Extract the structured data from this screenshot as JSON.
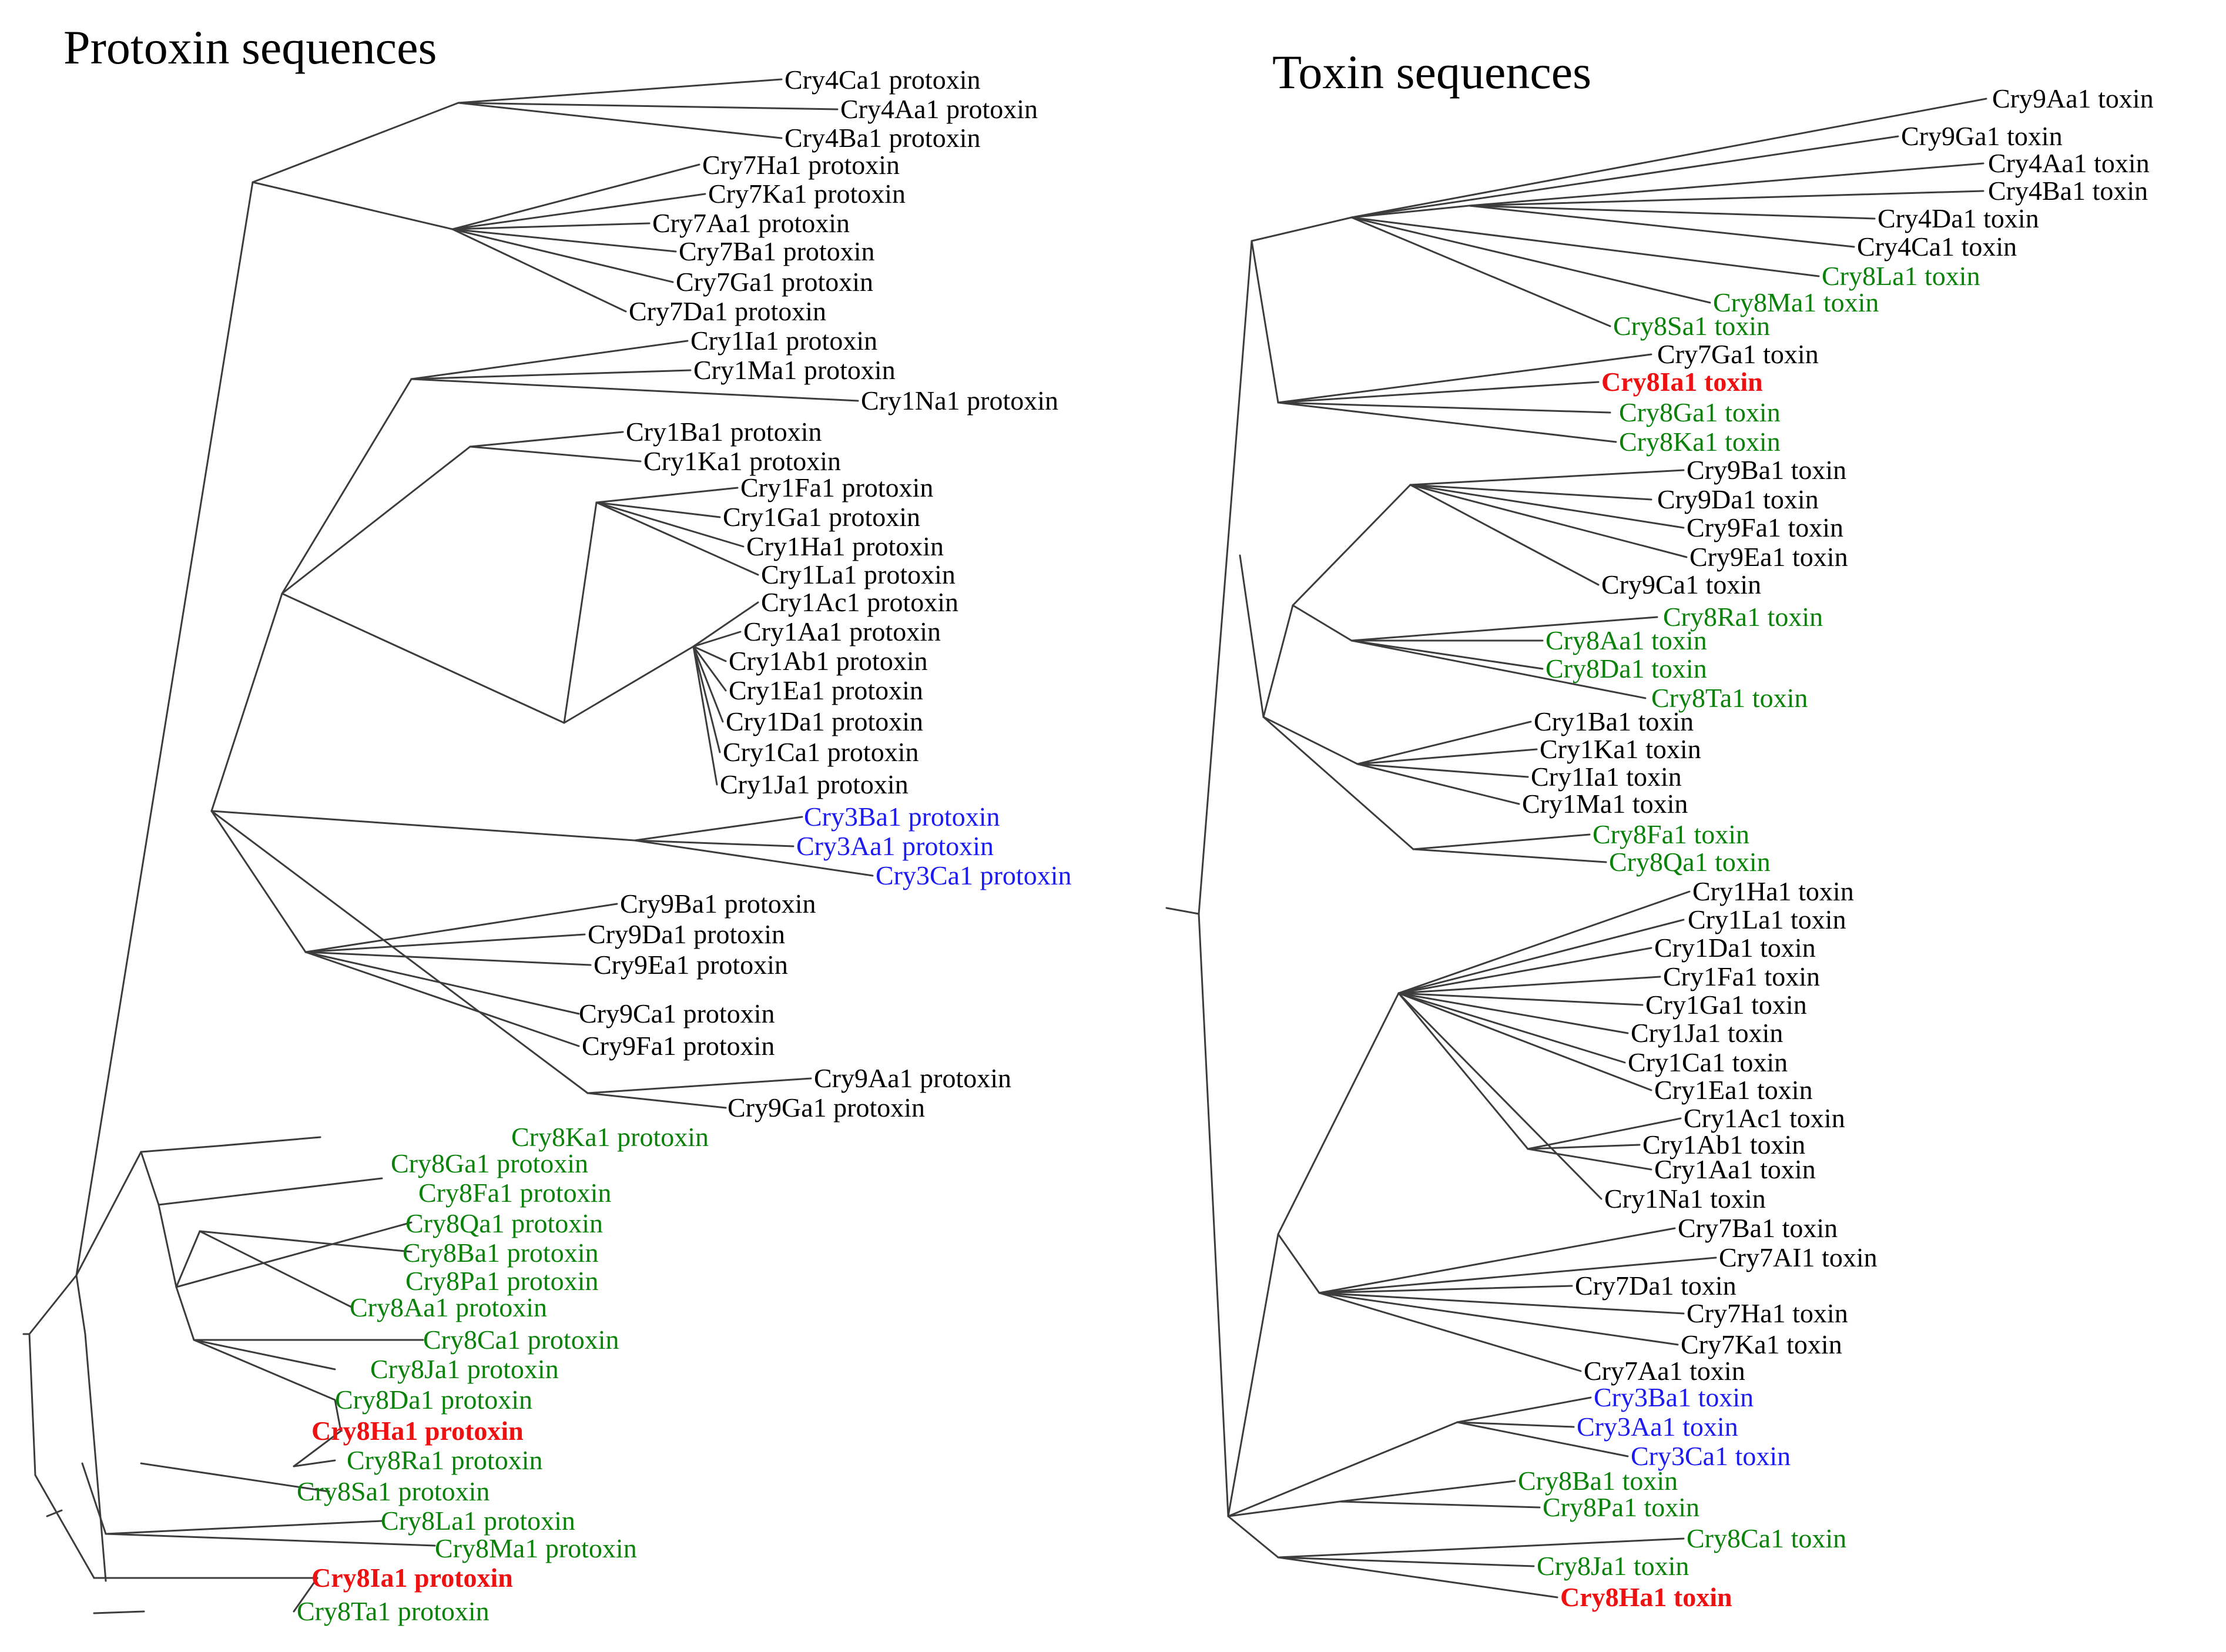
{
  "colors": {
    "black": "#000000",
    "green": "#0a820a",
    "blue": "#1c1cf0",
    "red": "#ee1111"
  },
  "titles": {
    "protoxin": "Protoxin sequences",
    "toxin": "Toxin sequences"
  },
  "protoxin_leaves": [
    {
      "label": "Cry4Ca1 protoxin",
      "color": "black"
    },
    {
      "label": "Cry4Aa1 protoxin",
      "color": "black"
    },
    {
      "label": "Cry4Ba1 protoxin",
      "color": "black"
    },
    {
      "label": "Cry7Ha1 protoxin",
      "color": "black"
    },
    {
      "label": "Cry7Ka1 protoxin",
      "color": "black"
    },
    {
      "label": "Cry7Aa1 protoxin",
      "color": "black"
    },
    {
      "label": "Cry7Ba1 protoxin",
      "color": "black"
    },
    {
      "label": "Cry7Ga1 protoxin",
      "color": "black"
    },
    {
      "label": "Cry7Da1 protoxin",
      "color": "black"
    },
    {
      "label": "Cry1Ia1 protoxin",
      "color": "black"
    },
    {
      "label": "Cry1Ma1 protoxin",
      "color": "black"
    },
    {
      "label": "Cry1Na1 protoxin",
      "color": "black"
    },
    {
      "label": "Cry1Ba1 protoxin",
      "color": "black"
    },
    {
      "label": "Cry1Ka1 protoxin",
      "color": "black"
    },
    {
      "label": "Cry1Fa1 protoxin",
      "color": "black"
    },
    {
      "label": "Cry1Ga1 protoxin",
      "color": "black"
    },
    {
      "label": "Cry1Ha1 protoxin",
      "color": "black"
    },
    {
      "label": "Cry1La1 protoxin",
      "color": "black"
    },
    {
      "label": "Cry1Ac1 protoxin",
      "color": "black"
    },
    {
      "label": "Cry1Aa1 protoxin",
      "color": "black"
    },
    {
      "label": "Cry1Ab1 protoxin",
      "color": "black"
    },
    {
      "label": "Cry1Ea1 protoxin",
      "color": "black"
    },
    {
      "label": "Cry1Da1 protoxin",
      "color": "black"
    },
    {
      "label": "Cry1Ca1 protoxin",
      "color": "black"
    },
    {
      "label": "Cry1Ja1 protoxin",
      "color": "black"
    },
    {
      "label": "Cry3Ba1 protoxin",
      "color": "blue"
    },
    {
      "label": "Cry3Aa1 protoxin",
      "color": "blue"
    },
    {
      "label": "Cry3Ca1 protoxin",
      "color": "blue"
    },
    {
      "label": "Cry9Ba1 protoxin",
      "color": "black"
    },
    {
      "label": "Cry9Da1 protoxin",
      "color": "black"
    },
    {
      "label": "Cry9Ea1 protoxin",
      "color": "black"
    },
    {
      "label": "Cry9Ca1 protoxin",
      "color": "black"
    },
    {
      "label": "Cry9Fa1 protoxin",
      "color": "black"
    },
    {
      "label": "Cry9Aa1 protoxin",
      "color": "black"
    },
    {
      "label": "Cry9Ga1 protoxin",
      "color": "black"
    },
    {
      "label": "Cry8Ka1 protoxin",
      "color": "green"
    },
    {
      "label": "Cry8Ga1 protoxin",
      "color": "green"
    },
    {
      "label": "Cry8Fa1 protoxin",
      "color": "green"
    },
    {
      "label": "Cry8Qa1 protoxin",
      "color": "green"
    },
    {
      "label": "Cry8Ba1 protoxin",
      "color": "green"
    },
    {
      "label": "Cry8Pa1 protoxin",
      "color": "green"
    },
    {
      "label": "Cry8Aa1 protoxin",
      "color": "green"
    },
    {
      "label": "Cry8Ca1 protoxin",
      "color": "green"
    },
    {
      "label": "Cry8Ja1 protoxin",
      "color": "green"
    },
    {
      "label": "Cry8Da1 protoxin",
      "color": "green"
    },
    {
      "label": "Cry8Ha1 protoxin",
      "color": "red",
      "bold": true
    },
    {
      "label": "Cry8Ra1 protoxin",
      "color": "green"
    },
    {
      "label": "Cry8Sa1 protoxin",
      "color": "green"
    },
    {
      "label": "Cry8La1 protoxin",
      "color": "green"
    },
    {
      "label": "Cry8Ma1 protoxin",
      "color": "green"
    },
    {
      "label": "Cry8Ia1 protoxin",
      "color": "red",
      "bold": true
    },
    {
      "label": "Cry8Ta1 protoxin",
      "color": "green"
    }
  ],
  "toxin_leaves": [
    {
      "label": "Cry9Aa1 toxin",
      "color": "black"
    },
    {
      "label": "Cry9Ga1 toxin",
      "color": "black"
    },
    {
      "label": "Cry4Aa1 toxin",
      "color": "black"
    },
    {
      "label": "Cry4Ba1 toxin",
      "color": "black"
    },
    {
      "label": "Cry4Da1 toxin",
      "color": "black"
    },
    {
      "label": "Cry4Ca1 toxin",
      "color": "black"
    },
    {
      "label": "Cry8La1 toxin",
      "color": "green"
    },
    {
      "label": "Cry8Ma1 toxin",
      "color": "green"
    },
    {
      "label": "Cry8Sa1 toxin",
      "color": "green"
    },
    {
      "label": "Cry7Ga1 toxin",
      "color": "black"
    },
    {
      "label": "Cry8Ia1 toxin",
      "color": "red",
      "bold": true
    },
    {
      "label": "Cry8Ga1 toxin",
      "color": "green"
    },
    {
      "label": "Cry8Ka1 toxin",
      "color": "green"
    },
    {
      "label": "Cry9Ba1 toxin",
      "color": "black"
    },
    {
      "label": "Cry9Da1 toxin",
      "color": "black"
    },
    {
      "label": "Cry9Fa1 toxin",
      "color": "black"
    },
    {
      "label": "Cry9Ea1 toxin",
      "color": "black"
    },
    {
      "label": "Cry9Ca1 toxin",
      "color": "black"
    },
    {
      "label": "Cry8Ra1 toxin",
      "color": "green"
    },
    {
      "label": "Cry8Aa1 toxin",
      "color": "green"
    },
    {
      "label": "Cry8Da1 toxin",
      "color": "green"
    },
    {
      "label": "Cry8Ta1 toxin",
      "color": "green"
    },
    {
      "label": "Cry1Ba1 toxin",
      "color": "black"
    },
    {
      "label": "Cry1Ka1 toxin",
      "color": "black"
    },
    {
      "label": "Cry1Ia1 toxin",
      "color": "black"
    },
    {
      "label": "Cry1Ma1 toxin",
      "color": "black"
    },
    {
      "label": "Cry8Fa1 toxin",
      "color": "green"
    },
    {
      "label": "Cry8Qa1 toxin",
      "color": "green"
    },
    {
      "label": "Cry1Ha1 toxin",
      "color": "black"
    },
    {
      "label": "Cry1La1 toxin",
      "color": "black"
    },
    {
      "label": "Cry1Da1 toxin",
      "color": "black"
    },
    {
      "label": "Cry1Fa1 toxin",
      "color": "black"
    },
    {
      "label": "Cry1Ga1 toxin",
      "color": "black"
    },
    {
      "label": "Cry1Ja1 toxin",
      "color": "black"
    },
    {
      "label": "Cry1Ca1 toxin",
      "color": "black"
    },
    {
      "label": "Cry1Ea1 toxin",
      "color": "black"
    },
    {
      "label": "Cry1Ac1 toxin",
      "color": "black"
    },
    {
      "label": "Cry1Ab1 toxin",
      "color": "black"
    },
    {
      "label": "Cry1Aa1 toxin",
      "color": "black"
    },
    {
      "label": "Cry1Na1 toxin",
      "color": "black"
    },
    {
      "label": "Cry7Ba1 toxin",
      "color": "black"
    },
    {
      "label": "Cry7AI1 toxin",
      "color": "black"
    },
    {
      "label": "Cry7Da1 toxin",
      "color": "black"
    },
    {
      "label": "Cry7Ha1 toxin",
      "color": "black"
    },
    {
      "label": "Cry7Ka1 toxin",
      "color": "black"
    },
    {
      "label": "Cry7Aa1 toxin",
      "color": "black"
    },
    {
      "label": "Cry3Ba1 toxin",
      "color": "blue"
    },
    {
      "label": "Cry3Aa1 toxin",
      "color": "blue"
    },
    {
      "label": "Cry3Ca1 toxin",
      "color": "blue"
    },
    {
      "label": "Cry8Ba1 toxin",
      "color": "green"
    },
    {
      "label": "Cry8Pa1 toxin",
      "color": "green"
    },
    {
      "label": "Cry8Ca1 toxin",
      "color": "green"
    },
    {
      "label": "Cry8Ja1 toxin",
      "color": "green"
    },
    {
      "label": "Cry8Ha1 toxin",
      "color": "red",
      "bold": true
    }
  ]
}
